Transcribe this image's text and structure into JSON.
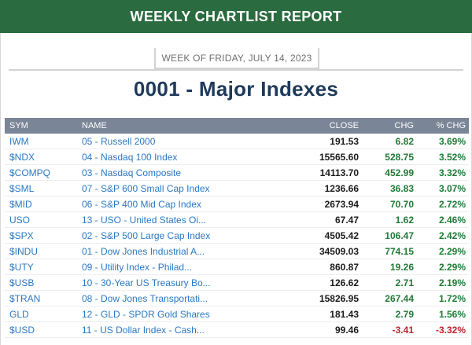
{
  "header": {
    "title": "WEEKLY CHARTLIST REPORT"
  },
  "week": {
    "label": "WEEK OF FRIDAY, JULY 14, 2023"
  },
  "list": {
    "title": "0001 - Major Indexes"
  },
  "columns": {
    "sym": "SYM",
    "name": "NAME",
    "close": "CLOSE",
    "chg": "CHG",
    "pct": "% CHG"
  },
  "colors": {
    "header_bg": "#2a6b3f",
    "table_head_bg": "#7a8597",
    "link": "#2b78c3",
    "up": "#1f7a35",
    "down": "#c0232a"
  },
  "rows": [
    {
      "sym": "IWM",
      "name": "05 - Russell 2000",
      "close": "191.53",
      "chg": "6.82",
      "pct": "3.69%",
      "dir": "up"
    },
    {
      "sym": "$NDX",
      "name": "04 - Nasdaq 100 Index",
      "close": "15565.60",
      "chg": "528.75",
      "pct": "3.52%",
      "dir": "up"
    },
    {
      "sym": "$COMPQ",
      "name": "03 - Nasdaq Composite",
      "close": "14113.70",
      "chg": "452.99",
      "pct": "3.32%",
      "dir": "up"
    },
    {
      "sym": "$SML",
      "name": "07 - S&P 600 Small Cap Index",
      "close": "1236.66",
      "chg": "36.83",
      "pct": "3.07%",
      "dir": "up"
    },
    {
      "sym": "$MID",
      "name": "06 - S&P 400 Mid Cap Index",
      "close": "2673.94",
      "chg": "70.70",
      "pct": "2.72%",
      "dir": "up"
    },
    {
      "sym": "USO",
      "name": "13 - USO - United States Oi...",
      "close": "67.47",
      "chg": "1.62",
      "pct": "2.46%",
      "dir": "up"
    },
    {
      "sym": "$SPX",
      "name": "02 - S&P 500 Large Cap Index",
      "close": "4505.42",
      "chg": "106.47",
      "pct": "2.42%",
      "dir": "up"
    },
    {
      "sym": "$INDU",
      "name": "01 - Dow Jones Industrial A...",
      "close": "34509.03",
      "chg": "774.15",
      "pct": "2.29%",
      "dir": "up"
    },
    {
      "sym": "$UTY",
      "name": "09 - Utility Index - Philad...",
      "close": "860.87",
      "chg": "19.26",
      "pct": "2.29%",
      "dir": "up"
    },
    {
      "sym": "$USB",
      "name": "10 - 30-Year US Treasury Bo...",
      "close": "126.62",
      "chg": "2.71",
      "pct": "2.19%",
      "dir": "up"
    },
    {
      "sym": "$TRAN",
      "name": "08 - Dow Jones Transportati...",
      "close": "15826.95",
      "chg": "267.44",
      "pct": "1.72%",
      "dir": "up"
    },
    {
      "sym": "GLD",
      "name": "12 - GLD - SPDR Gold Shares",
      "close": "181.43",
      "chg": "2.79",
      "pct": "1.56%",
      "dir": "up"
    },
    {
      "sym": "$USD",
      "name": "11 - US Dollar Index - Cash...",
      "close": "99.46",
      "chg": "-3.41",
      "pct": "-3.32%",
      "dir": "down"
    }
  ]
}
